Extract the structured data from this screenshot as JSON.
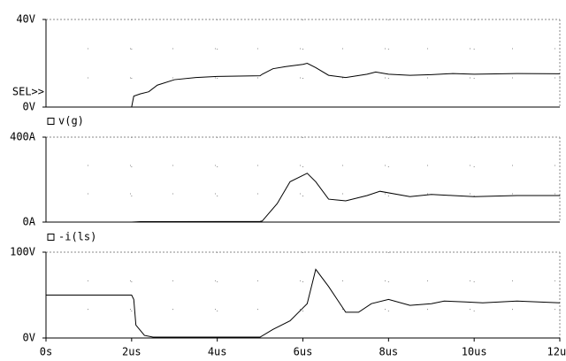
{
  "chart_data": [
    {
      "type": "line",
      "annotation": "SEL>>",
      "xlim": [
        0,
        12
      ],
      "ylim": [
        0,
        40
      ],
      "yticks": [
        {
          "value": 0,
          "label": "0V"
        },
        {
          "value": 40,
          "label": "40V"
        }
      ],
      "x": [
        0,
        2.0,
        2.05,
        2.2,
        2.4,
        2.6,
        3.0,
        3.5,
        4.0,
        5.0,
        5.05,
        5.3,
        5.6,
        6.0,
        6.1,
        6.3,
        6.6,
        7.0,
        7.5,
        7.7,
        8.0,
        8.5,
        9.0,
        9.5,
        10,
        11,
        12
      ],
      "series": [
        {
          "name": "v(g)",
          "color": "#000000",
          "values": [
            0,
            0,
            5,
            6,
            7,
            10,
            12.5,
            13.5,
            14,
            14.3,
            15,
            17.5,
            18.5,
            19.5,
            20,
            18,
            14.5,
            13.5,
            15,
            16,
            15,
            14.5,
            14.8,
            15.3,
            15,
            15.3,
            15.2
          ]
        }
      ]
    },
    {
      "type": "line",
      "xlim": [
        0,
        12
      ],
      "ylim": [
        0,
        400
      ],
      "yticks": [
        {
          "value": 0,
          "label": "0A"
        },
        {
          "value": 400,
          "label": "400A"
        }
      ],
      "x": [
        0,
        2.0,
        2.2,
        5.0,
        5.05,
        5.4,
        5.7,
        6.1,
        6.3,
        6.6,
        7.0,
        7.5,
        7.8,
        8.5,
        9.0,
        9.5,
        10,
        11,
        12
      ],
      "series": [
        {
          "name": "-i(ls)",
          "color": "#000000",
          "values": [
            0,
            0,
            2,
            3,
            5,
            87,
            190,
            230,
            190,
            108,
            100,
            125,
            145,
            120,
            130,
            125,
            120,
            125,
            125
          ]
        }
      ]
    },
    {
      "type": "line",
      "xlim": [
        0,
        12
      ],
      "xticks": [
        {
          "value": 0,
          "label": "0s"
        },
        {
          "value": 2,
          "label": "2us"
        },
        {
          "value": 4,
          "label": "4us"
        },
        {
          "value": 6,
          "label": "6us"
        },
        {
          "value": 8,
          "label": "8us"
        },
        {
          "value": 10,
          "label": "10us"
        },
        {
          "value": 12,
          "label": "12us"
        }
      ],
      "ylim": [
        0,
        100
      ],
      "yticks": [
        {
          "value": 0,
          "label": "0V"
        },
        {
          "value": 100,
          "label": "100V"
        }
      ],
      "x": [
        0,
        2.0,
        2.05,
        2.1,
        2.3,
        2.5,
        5.0,
        5.3,
        5.7,
        6.0,
        6.1,
        6.3,
        6.6,
        7.0,
        7.3,
        7.6,
        8.0,
        8.5,
        9.0,
        9.3,
        9.8,
        10.2,
        11,
        12
      ],
      "series": [
        {
          "color": "#000000",
          "values": [
            50,
            50,
            45,
            15,
            3,
            1,
            1,
            10,
            20,
            35,
            40,
            80,
            60,
            30,
            30,
            40,
            45,
            38,
            40,
            43,
            42,
            41,
            43,
            41
          ]
        }
      ]
    }
  ]
}
